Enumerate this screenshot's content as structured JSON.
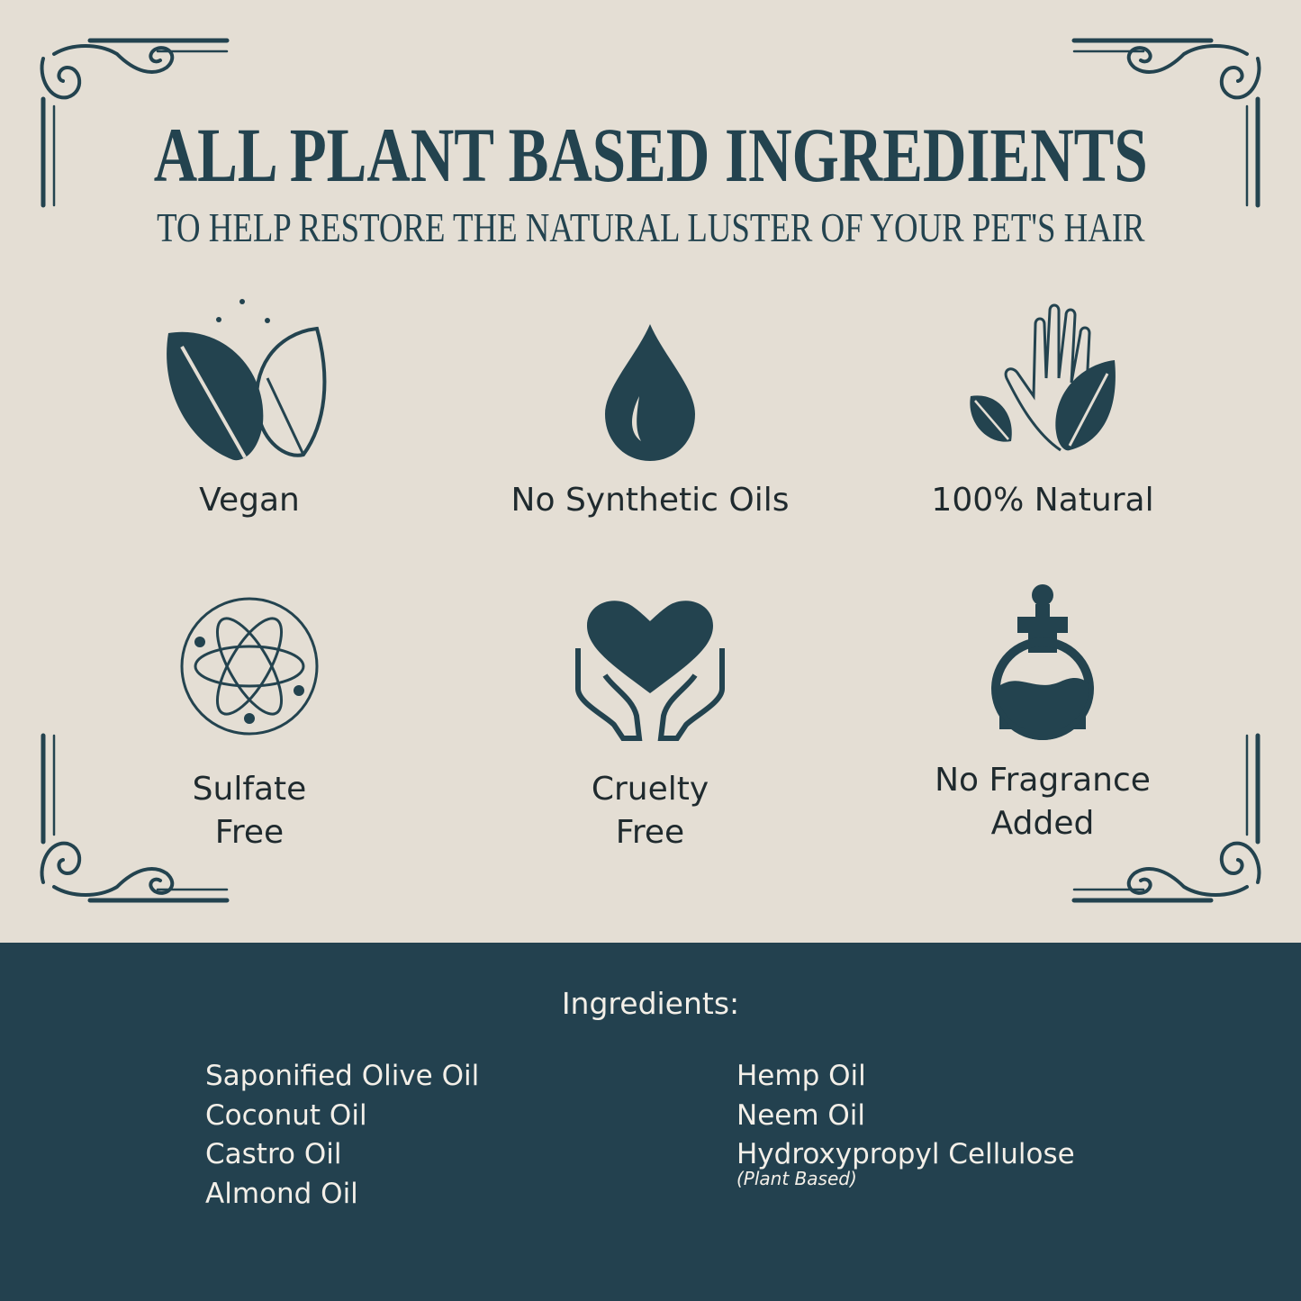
{
  "header": {
    "title": "ALL PLANT BASED INGREDIENTS",
    "subtitle": "TO HELP RESTORE THE NATURAL LUSTER OF YOUR PET'S HAIR"
  },
  "features": [
    {
      "label": "Vegan",
      "icon": "leaves-icon"
    },
    {
      "label": "No Synthetic Oils",
      "icon": "oil-drop-icon"
    },
    {
      "label": "100% Natural",
      "icon": "hand-leaf-icon"
    },
    {
      "label_line1": "Sulfate",
      "label_line2": "Free",
      "icon": "atom-icon"
    },
    {
      "label_line1": "Cruelty",
      "label_line2": "Free",
      "icon": "hands-heart-icon"
    },
    {
      "label_line1": "No Fragrance",
      "label_line2": "Added",
      "icon": "perfume-bottle-icon"
    }
  ],
  "ingredients": {
    "heading": "Ingredients:",
    "left": [
      "Saponified Olive Oil",
      "Coconut Oil",
      "Castro Oil",
      "Almond Oil"
    ],
    "right": [
      "Hemp Oil",
      "Neem Oil",
      "Hydroxypropyl Cellulose"
    ],
    "right_note": "(Plant Based)"
  },
  "colors": {
    "background": "#e4ded4",
    "accent": "#23414f",
    "text_light": "#f3efe8"
  }
}
